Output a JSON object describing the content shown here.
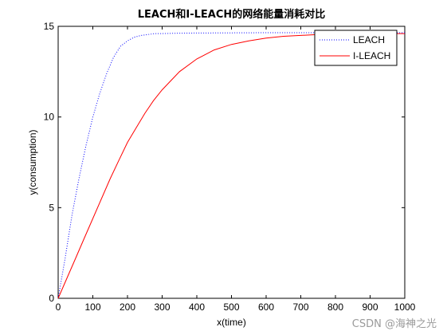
{
  "chart_data": {
    "type": "line",
    "title": "LEACH和I-LEACH的网络能量消耗对比",
    "xlabel": "x(time)",
    "ylabel": "y(consumption)",
    "xlim": [
      0,
      1000
    ],
    "ylim": [
      0,
      15
    ],
    "xticks": [
      0,
      100,
      200,
      300,
      400,
      500,
      600,
      700,
      800,
      900,
      1000
    ],
    "yticks": [
      0,
      5,
      10,
      15
    ],
    "grid": false,
    "legend_position": "top-right",
    "series": [
      {
        "name": "LEACH",
        "color": "#0000ff",
        "style": "dotted",
        "x": [
          0,
          20,
          40,
          60,
          80,
          100,
          120,
          140,
          160,
          180,
          200,
          220,
          240,
          260,
          280,
          300,
          350,
          400,
          500,
          600,
          700,
          800,
          900,
          1000
        ],
        "y": [
          0,
          2.2,
          4.6,
          6.6,
          8.4,
          10.0,
          11.3,
          12.4,
          13.3,
          13.9,
          14.2,
          14.4,
          14.5,
          14.55,
          14.6,
          14.6,
          14.62,
          14.63,
          14.64,
          14.65,
          14.65,
          14.65,
          14.65,
          14.65
        ]
      },
      {
        "name": "I-LEACH",
        "color": "#ff0000",
        "style": "solid",
        "x": [
          0,
          25,
          50,
          75,
          100,
          125,
          150,
          175,
          200,
          225,
          250,
          275,
          300,
          350,
          400,
          450,
          500,
          550,
          600,
          650,
          700,
          750,
          800,
          850,
          900,
          950,
          1000
        ],
        "y": [
          0,
          1.1,
          2.2,
          3.3,
          4.4,
          5.5,
          6.6,
          7.6,
          8.6,
          9.4,
          10.2,
          10.9,
          11.5,
          12.5,
          13.2,
          13.7,
          14.0,
          14.2,
          14.35,
          14.45,
          14.5,
          14.55,
          14.57,
          14.58,
          14.59,
          14.6,
          14.6
        ]
      }
    ]
  },
  "watermark": "CSDN @海神之光"
}
